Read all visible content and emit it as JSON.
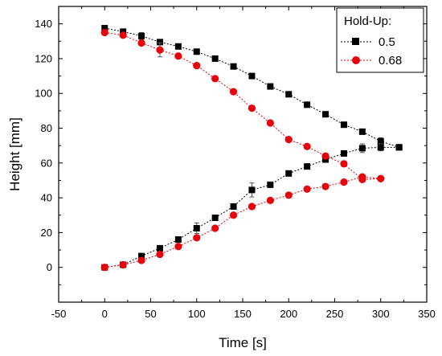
{
  "chart_data": {
    "type": "scatter",
    "title": "",
    "xlabel": "Time [s]",
    "ylabel": "Height [mm]",
    "xlim": [
      -50,
      350
    ],
    "ylim": [
      -20,
      150
    ],
    "xticks": [
      -50,
      0,
      50,
      100,
      150,
      200,
      250,
      300,
      350
    ],
    "yticks": [
      0,
      20,
      40,
      60,
      80,
      100,
      120,
      140
    ],
    "grid": false,
    "legend": {
      "title": "Hold-Up:",
      "placement": "top-right"
    },
    "series": [
      {
        "name": "0.5",
        "color": "#000000",
        "marker": "square",
        "line": "dotted",
        "segments": [
          {
            "x": [
              0,
              20,
              40,
              60,
              80,
              100,
              120,
              140,
              160,
              180,
              200,
              220,
              240,
              260,
              280,
              300,
              320
            ],
            "y": [
              137.5,
              135.5,
              133,
              129.5,
              127,
              124,
              120,
              115.5,
              110,
              104,
              99.5,
              93.5,
              88,
              82,
              78,
              72.5,
              69
            ],
            "err": [
              0.5,
              0.5,
              2,
              1,
              0.5,
              0.5,
              0.5,
              0.5,
              0.5,
              0.5,
              0.5,
              0.5,
              0.5,
              0.5,
              1.5,
              2,
              0.5
            ]
          },
          {
            "x": [
              0,
              20,
              40,
              60,
              80,
              100,
              120,
              140,
              160,
              180,
              200,
              220,
              240,
              260,
              280,
              300,
              320
            ],
            "y": [
              0,
              1.5,
              6.5,
              11,
              16,
              22.5,
              28.5,
              35,
              44.5,
              47.5,
              54,
              58,
              62,
              65.5,
              68.5,
              69,
              69
            ],
            "err": [
              0.5,
              0.5,
              0.5,
              1,
              1,
              3,
              0.5,
              0.5,
              4,
              0.5,
              0.5,
              0.5,
              0.5,
              0.5,
              2.5,
              2,
              0.5
            ]
          }
        ]
      },
      {
        "name": "0.68",
        "color": "#e8000b",
        "marker": "circle",
        "line": "dotted",
        "segments": [
          {
            "x": [
              0,
              20,
              40,
              60,
              80,
              100,
              120,
              140,
              160,
              180,
              200,
              220,
              240,
              260,
              280,
              300
            ],
            "y": [
              135,
              133.5,
              129,
              125,
              121.5,
              116,
              108.5,
              101,
              91.5,
              83,
              73.5,
              69.5,
              64,
              59.5,
              50.5,
              51
            ],
            "err": [
              0.5,
              0.5,
              0.5,
              4,
              0.5,
              0.5,
              0.5,
              0.5,
              0.5,
              0.5,
              0.5,
              0.5,
              0.5,
              0.5,
              0.5,
              0.5
            ]
          },
          {
            "x": [
              0,
              20,
              40,
              60,
              80,
              100,
              120,
              140,
              160,
              180,
              200,
              220,
              240,
              260,
              280,
              300
            ],
            "y": [
              0,
              1.5,
              4,
              7.5,
              12,
              17,
              22.5,
              30,
              35,
              38.5,
              41.5,
              45,
              46.5,
              49,
              52,
              51
            ],
            "err": [
              0.5,
              0.5,
              0.5,
              0.5,
              0.5,
              0.5,
              0.5,
              0.5,
              0.5,
              0.5,
              0.5,
              0.5,
              0.5,
              0.5,
              0.5,
              0.5
            ]
          }
        ]
      }
    ]
  }
}
